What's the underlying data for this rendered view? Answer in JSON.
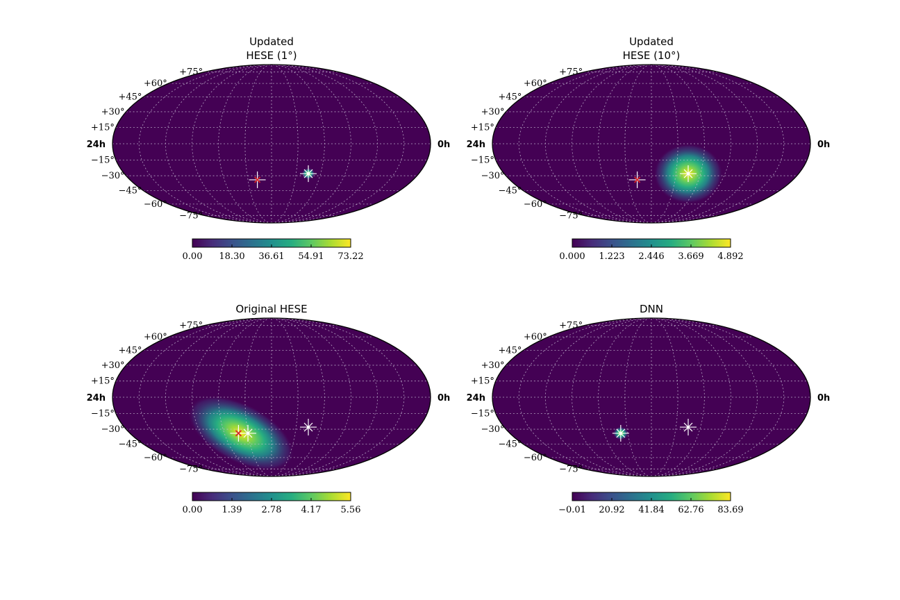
{
  "chart_data": [
    {
      "type": "heatmap",
      "projection": "mollweide",
      "title_lines": [
        "Updated",
        "HESE (1°)"
      ],
      "ra_left_label": "24h",
      "ra_right_label": "0h",
      "dec_labels": [
        "+75°",
        "+60°",
        "+45°",
        "+30°",
        "+15°",
        "−15°",
        "−30°",
        "−45°",
        "−60°",
        "−75°"
      ],
      "grid": true,
      "colormap": "viridis",
      "colorbar": {
        "min": 0.0,
        "max": 73.22,
        "ticks": [
          "0.00",
          "18.30",
          "36.61",
          "54.91",
          "73.22"
        ]
      },
      "hotspot": {
        "ra_hours": 9.0,
        "dec": -28,
        "sigma_deg": 1.2,
        "peak": 73.22
      },
      "markers": [
        {
          "kind": "white-cross",
          "ra_hours": 9.0,
          "dec": -28
        },
        {
          "kind": "red-cross",
          "ra_hours": 13.2,
          "dec": -34
        }
      ]
    },
    {
      "type": "heatmap",
      "projection": "mollweide",
      "title_lines": [
        "Updated",
        "HESE (10°)"
      ],
      "ra_left_label": "24h",
      "ra_right_label": "0h",
      "dec_labels": [
        "+75°",
        "+60°",
        "+45°",
        "+30°",
        "+15°",
        "−15°",
        "−30°",
        "−45°",
        "−60°",
        "−75°"
      ],
      "grid": true,
      "colormap": "viridis",
      "colorbar": {
        "min": 0.0,
        "max": 4.892,
        "ticks": [
          "0.000",
          "1.223",
          "2.446",
          "3.669",
          "4.892"
        ]
      },
      "hotspot": {
        "ra_hours": 9.0,
        "dec": -28,
        "sigma_deg": 7,
        "peak": 4.892
      },
      "markers": [
        {
          "kind": "white-cross",
          "ra_hours": 9.0,
          "dec": -28
        },
        {
          "kind": "red-cross",
          "ra_hours": 13.2,
          "dec": -34
        }
      ]
    },
    {
      "type": "heatmap",
      "projection": "mollweide",
      "title_lines": [
        "Original HESE"
      ],
      "ra_left_label": "24h",
      "ra_right_label": "0h",
      "dec_labels": [
        "+75°",
        "+60°",
        "+45°",
        "+30°",
        "+15°",
        "−15°",
        "−30°",
        "−45°",
        "−60°",
        "−75°"
      ],
      "grid": true,
      "colormap": "viridis",
      "colorbar": {
        "min": 0.0,
        "max": 5.56,
        "ticks": [
          "0.00",
          "1.39",
          "2.78",
          "4.17",
          "5.56"
        ]
      },
      "hotspot": {
        "ra_hours": 14.6,
        "dec": -34,
        "sigma_deg": 8,
        "peak": 5.56,
        "elongated": true
      },
      "markers": [
        {
          "kind": "white-cross",
          "ra_hours": 9.0,
          "dec": -28
        },
        {
          "kind": "red-cross",
          "ra_hours": 14.8,
          "dec": -34
        },
        {
          "kind": "white-cross",
          "ra_hours": 14.0,
          "dec": -34
        }
      ]
    },
    {
      "type": "heatmap",
      "projection": "mollweide",
      "title_lines": [
        "DNN"
      ],
      "ra_left_label": "24h",
      "ra_right_label": "0h",
      "dec_labels": [
        "+75°",
        "+60°",
        "+45°",
        "+30°",
        "+15°",
        "−15°",
        "−30°",
        "−45°",
        "−60°",
        "−75°"
      ],
      "grid": true,
      "colormap": "viridis",
      "colorbar": {
        "min": -0.01,
        "max": 83.69,
        "ticks": [
          "−0.01",
          "20.92",
          "41.84",
          "62.76",
          "83.69"
        ]
      },
      "hotspot": {
        "ra_hours": 14.6,
        "dec": -34,
        "sigma_deg": 1.5,
        "peak": 83.69
      },
      "markers": [
        {
          "kind": "white-cross",
          "ra_hours": 9.0,
          "dec": -28
        },
        {
          "kind": "white-cross",
          "ra_hours": 14.6,
          "dec": -34
        }
      ]
    }
  ]
}
